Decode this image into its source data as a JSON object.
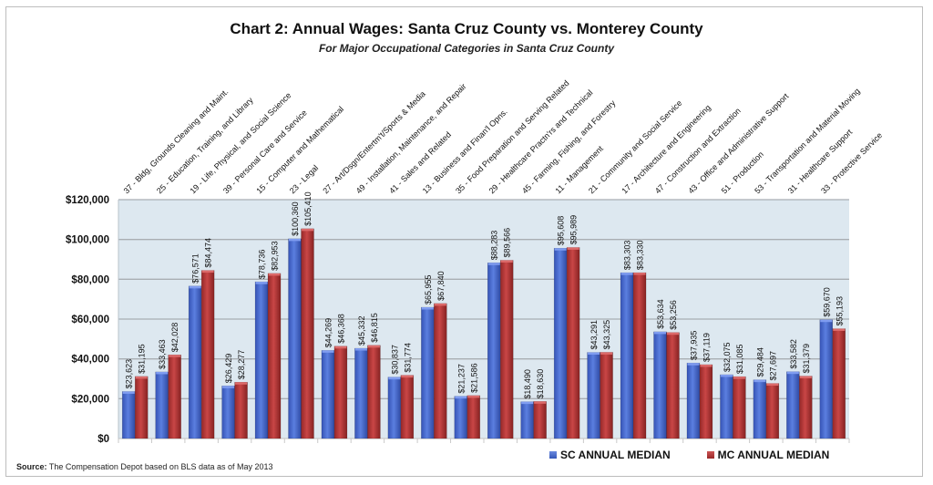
{
  "chart_data": {
    "type": "bar",
    "title": "Chart 2: Annual Wages: Santa Cruz County vs. Monterey County",
    "subtitle": "For Major Occupational Categories in Santa Cruz County",
    "xlabel": "",
    "ylabel": "",
    "ylim": [
      0,
      120000
    ],
    "yticks": [
      0,
      20000,
      40000,
      60000,
      80000,
      100000,
      120000
    ],
    "ytick_labels": [
      "$0",
      "$20,000",
      "$40,000",
      "$60,000",
      "$80,000",
      "$100,000",
      "$120,000"
    ],
    "grid": true,
    "legend_position": "bottom-right",
    "categories": [
      "37 - Bldg, Grounds Cleaning and Maint.",
      "25 - Education, Training, and Library",
      "19 - Life, Physical, and Social Science",
      "39 - Personal Care and Service",
      "15 - Computer and Mathematical",
      "23 - Legal",
      "27 - Art/Dsgn/Entertm't/Sports & Media",
      "49 - Installation, Maintenance, and Repair",
      "41 - Sales and Related",
      "13 - Business and Finan'l Opns.",
      "35 - Food Preparation and Serving Related",
      "29 - Healthcare Practn'rs and Technical",
      "45 - Farming, Fishing, and Forestry",
      "11 - Management",
      "21 - Community and Social Service",
      "17 - Architecture and Engineering",
      "47 - Construction and Extraction",
      "43 - Office and Administrative Support",
      "51 - Production",
      "53 - Transportation and Material Moving",
      "31 - Healthcare Support",
      "33 - Protective Service"
    ],
    "bar_slots": [
      {
        "category_index": 0
      },
      {
        "category_index": 1
      },
      {
        "category_index": 2
      },
      {
        "category_index": 3
      },
      {
        "category_index": 4
      },
      {
        "category_index": 5
      }
    ],
    "series": [
      {
        "name": "SC ANNUAL MEDIAN",
        "color": "#4a6fd0",
        "values": [
          23623,
          33463,
          76571,
          26429,
          78736,
          100360,
          44269,
          45332,
          30837,
          65955,
          21237,
          88283,
          18490,
          95608,
          43291,
          83303,
          53634,
          37935,
          32075,
          29484,
          33582,
          59670
        ],
        "labels": [
          "$23,623",
          "$33,463",
          "$76,571",
          "$26,429",
          "$78,736",
          "$100,360",
          "$44,269",
          "$45,332",
          "$30,837",
          "$65,955",
          "$21,237",
          "$88,283",
          "$18,490",
          "$95,608",
          "$43,291",
          "$83,303",
          "$53,634",
          "$37,935",
          "$32,075",
          "$29,484",
          "$33,582",
          "$59,670"
        ]
      },
      {
        "name": "MC ANNUAL MEDIAN",
        "color": "#b53a3a",
        "values": [
          31195,
          42028,
          84474,
          28277,
          82953,
          105410,
          46368,
          46815,
          31774,
          67840,
          21586,
          89566,
          18630,
          95989,
          43325,
          83330,
          53256,
          37119,
          31085,
          27697,
          31379,
          55193
        ],
        "labels": [
          "$31,195",
          "$42,028",
          "$84,474",
          "$28,277",
          "$82,953",
          "$105,410",
          "$46,368",
          "$46,815",
          "$31,774",
          "$67,840",
          "$21,586",
          "$89,566",
          "$18,630",
          "$95,989",
          "$43,325",
          "$83,330",
          "$53,256",
          "$37,119",
          "$31,085",
          "$27,697",
          "$31,379",
          "$55,193"
        ]
      }
    ]
  },
  "legend": {
    "sc_label": "SC ANNUAL MEDIAN",
    "mc_label": "MC ANNUAL MEDIAN"
  },
  "source": {
    "label": "Source:",
    "text": " The Compensation Depot based on BLS data as of May 2013"
  },
  "colors": {
    "plot_background": "#dde8f0",
    "gridline": "#a9aeb3",
    "sc": "#4a6fd0",
    "mc": "#b53a3a"
  }
}
